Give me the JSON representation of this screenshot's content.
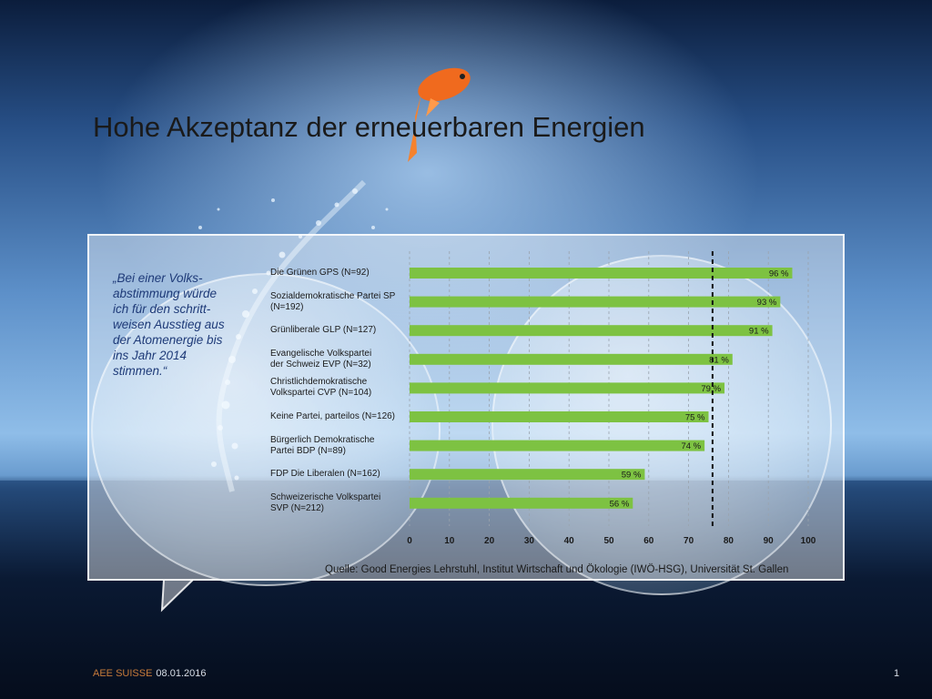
{
  "slide": {
    "title": "Hohe Akzeptanz der erneuerbaren Energien",
    "quote_lines": [
      "„Bei einer Volks-",
      "abstimmung würde",
      "ich für den schritt-",
      "weisen Ausstieg aus",
      "der Atomenergie bis",
      "ins Jahr 2014",
      "stimmen.“"
    ],
    "source": "Quelle: Good Energies Lehrstuhl, Institut Wirtschaft und Ökologie (IWÖ-HSG), Universität St. Gallen",
    "footer_org": "AEE SUISSE",
    "footer_date": "08.01.2016",
    "page_number": "1"
  },
  "colors": {
    "bar": "#7dc242",
    "title": "#1a1a1a",
    "quote": "#1e3a78",
    "footer_org": "#c77b3a"
  },
  "chart_data": {
    "type": "bar",
    "orientation": "horizontal",
    "categories": [
      [
        "Die Grünen GPS (N=92)"
      ],
      [
        "Sozialdemokratische Partei SP",
        "(N=192)"
      ],
      [
        "Grünliberale GLP (N=127)"
      ],
      [
        "Evangelische Volkspartei",
        "der Schweiz EVP (N=32)"
      ],
      [
        "Christlichdemokratische",
        "Volkspartei CVP (N=104)"
      ],
      [
        "Keine Partei, parteilos (N=126)"
      ],
      [
        "Bürgerlich Demokratische",
        "Partei BDP (N=89)"
      ],
      [
        "FDP Die Liberalen (N=162)"
      ],
      [
        "Schweizerische Volkspartei",
        "SVP (N=212)"
      ]
    ],
    "values": [
      96,
      93,
      91,
      81,
      79,
      75,
      74,
      59,
      56
    ],
    "value_labels": [
      "96 %",
      "93 %",
      "91 %",
      "81 %",
      "79 %",
      "75 %",
      "74 %",
      "59 %",
      "56 %"
    ],
    "xlim": [
      0,
      100
    ],
    "ticks": [
      0,
      10,
      20,
      30,
      40,
      50,
      60,
      70,
      80,
      90,
      100
    ],
    "tick_labels": [
      "0",
      "10",
      "20",
      "30",
      "40",
      "50",
      "60",
      "70",
      "80",
      "90",
      "100"
    ],
    "reference_line": 76,
    "grid": true
  }
}
